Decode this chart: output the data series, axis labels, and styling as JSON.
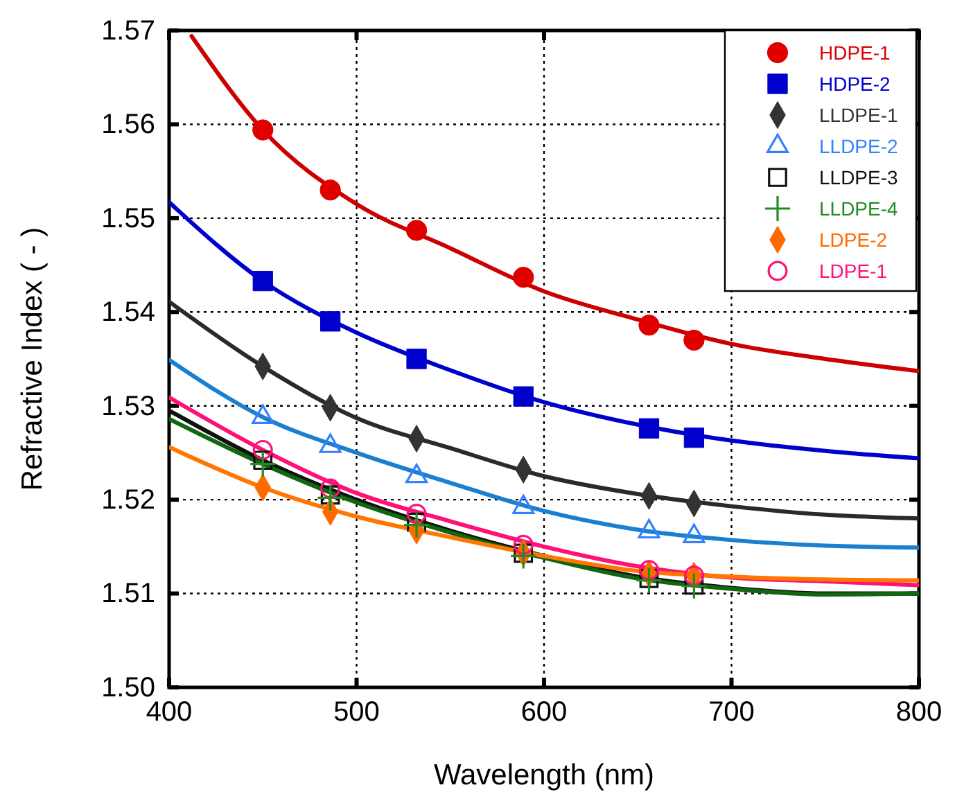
{
  "chart_data": {
    "type": "scatter",
    "xlabel": "Wavelength (nm)",
    "ylabel": "Refractive Index ( - )",
    "xlim": [
      400,
      800
    ],
    "xticks": [
      400,
      500,
      600,
      700,
      800
    ],
    "ylim": [
      1.5,
      1.57
    ],
    "yticks": [
      {
        "value": 1.5,
        "label": "1.50"
      },
      1.51,
      1.52,
      1.53,
      1.54,
      1.55,
      1.56,
      1.57
    ],
    "grid": true,
    "legend": "top right",
    "x": [
      450,
      486,
      532,
      589,
      656,
      680
    ],
    "series": [
      {
        "name": "HDPE-1",
        "color": "#e00000",
        "marker": "circle",
        "values": [
          1.5594,
          1.553,
          1.5487,
          1.5437,
          1.5386,
          1.537
        ]
      },
      {
        "name": "HDPE-2",
        "color": "#0000cc",
        "marker": "square",
        "values": [
          1.5433,
          1.539,
          1.535,
          1.531,
          1.5276,
          1.5266
        ]
      },
      {
        "name": "LLDPE-1",
        "color": "#333333",
        "marker": "diamond",
        "values": [
          1.5342,
          1.5298,
          1.5265,
          1.5232,
          1.5204,
          1.5196
        ]
      },
      {
        "name": "LLDPE-2",
        "color": "#3380ff",
        "marker": "triangle",
        "values": [
          1.5288,
          1.5257,
          1.5225,
          1.5192,
          1.5166,
          1.5161
        ]
      },
      {
        "name": "LLDPE-3",
        "color": "#111111",
        "marker": "square-open",
        "values": [
          1.5242,
          1.5205,
          1.5176,
          1.5143,
          1.5116,
          1.5109
        ]
      },
      {
        "name": "LLDPE-4",
        "color": "#228b22",
        "marker": "cross",
        "values": [
          1.5238,
          1.5202,
          1.5173,
          1.514,
          1.5114,
          1.5108
        ]
      },
      {
        "name": "LDPE-2",
        "color": "#ff6a00",
        "marker": "diamond",
        "values": [
          1.5213,
          1.5187,
          1.5167,
          1.5143,
          1.5121,
          1.5119
        ]
      },
      {
        "name": "LDPE-1",
        "color": "#ff1177",
        "marker": "circle-open",
        "values": [
          1.5253,
          1.5212,
          1.5185,
          1.5152,
          1.5125,
          1.5119
        ]
      },
      {
        "type": "line",
        "color": "#cc0000",
        "x": [
          412,
          450,
          500,
          550,
          600,
          650,
          700,
          750,
          800
        ],
        "values": [
          1.5694,
          1.5594,
          1.5515,
          1.5468,
          1.5422,
          1.5392,
          1.5366,
          1.535,
          1.5337
        ]
      },
      {
        "type": "line",
        "color": "#0000cc",
        "x": [
          400,
          450,
          500,
          550,
          600,
          650,
          700,
          750,
          800
        ],
        "values": [
          1.5517,
          1.5433,
          1.5378,
          1.5338,
          1.5304,
          1.528,
          1.5263,
          1.5252,
          1.5244
        ]
      },
      {
        "type": "line",
        "color": "#2a2a2a",
        "x": [
          400,
          450,
          500,
          550,
          600,
          650,
          700,
          750,
          800
        ],
        "values": [
          1.5411,
          1.5342,
          1.5287,
          1.5255,
          1.5225,
          1.5206,
          1.5193,
          1.5184,
          1.518
        ]
      },
      {
        "type": "line",
        "color": "#1a7fcf",
        "x": [
          400,
          450,
          500,
          550,
          600,
          650,
          700,
          750,
          800
        ],
        "values": [
          1.5349,
          1.5288,
          1.525,
          1.5218,
          1.5188,
          1.5168,
          1.5157,
          1.5151,
          1.5149
        ]
      },
      {
        "type": "line",
        "color": "#ff1177",
        "x": [
          400,
          450,
          500,
          550,
          600,
          650,
          700,
          750,
          800
        ],
        "values": [
          1.5309,
          1.5253,
          1.5207,
          1.5177,
          1.515,
          1.5129,
          1.5117,
          1.5113,
          1.5109
        ]
      },
      {
        "type": "line",
        "color": "#111111",
        "x": [
          400,
          450,
          500,
          550,
          600,
          650,
          700,
          750,
          800
        ],
        "values": [
          1.5295,
          1.5242,
          1.52,
          1.5167,
          1.514,
          1.5118,
          1.5106,
          1.51,
          1.51
        ]
      },
      {
        "type": "line",
        "color": "#116611",
        "x": [
          400,
          450,
          500,
          550,
          600,
          650,
          700,
          750,
          800
        ],
        "values": [
          1.5286,
          1.5238,
          1.5197,
          1.5165,
          1.5138,
          1.5116,
          1.5105,
          1.5099,
          1.51
        ]
      },
      {
        "type": "line",
        "color": "#ff7700",
        "x": [
          400,
          450,
          500,
          550,
          600,
          650,
          700,
          750,
          800
        ],
        "values": [
          1.5256,
          1.5213,
          1.5182,
          1.516,
          1.514,
          1.5124,
          1.5118,
          1.5115,
          1.5114
        ]
      }
    ]
  }
}
